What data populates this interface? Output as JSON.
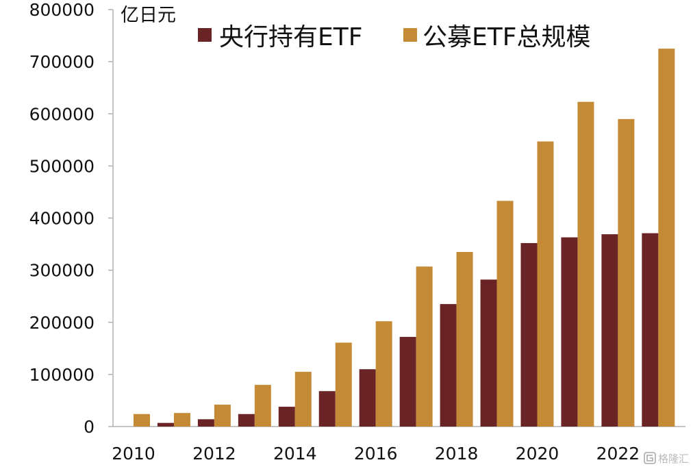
{
  "chart_data": {
    "type": "bar",
    "unit_label": "亿日元",
    "years": [
      2010,
      2011,
      2012,
      2013,
      2014,
      2015,
      2016,
      2017,
      2018,
      2019,
      2020,
      2021,
      2022,
      2023
    ],
    "x_tick_labels": [
      "2010",
      "2012",
      "2014",
      "2016",
      "2018",
      "2020",
      "2022"
    ],
    "y_tick_labels": [
      "0",
      "100000",
      "200000",
      "300000",
      "400000",
      "500000",
      "600000",
      "700000",
      "800000"
    ],
    "ylim": [
      0,
      800000
    ],
    "series": [
      {
        "name": "央行持有ETF",
        "color": "#6b2426",
        "values": [
          0,
          7000,
          14000,
          24000,
          38000,
          68000,
          110000,
          172000,
          235000,
          282000,
          352000,
          363000,
          369000,
          371000
        ]
      },
      {
        "name": "公募ETF总规模",
        "color": "#c48a36",
        "values": [
          24000,
          26000,
          42000,
          80000,
          105000,
          161000,
          202000,
          307000,
          335000,
          433000,
          547000,
          623000,
          590000,
          725000
        ]
      }
    ],
    "legend_position": "top",
    "grid": false
  },
  "watermark": {
    "icon": "gelonghui-logo-icon",
    "text": "格隆汇"
  }
}
